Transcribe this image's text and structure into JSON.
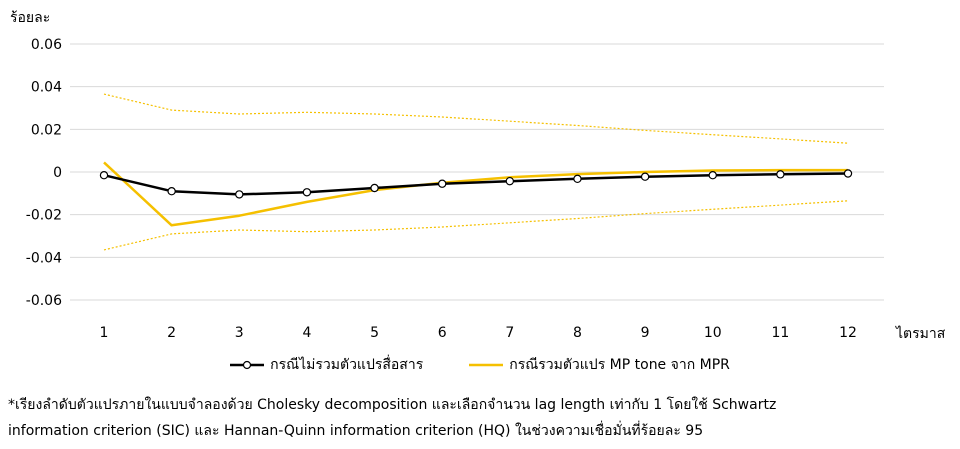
{
  "chart_data": {
    "type": "line",
    "ylabel": "ร้อยละ",
    "xlabel": "ไตรมาส",
    "x": [
      1,
      2,
      3,
      4,
      5,
      6,
      7,
      8,
      9,
      10,
      11,
      12
    ],
    "ylim": [
      -0.06,
      0.06
    ],
    "yticks": [
      "0.06",
      "0.04",
      "0.02",
      "0",
      "-0.02",
      "-0.04",
      "-0.06"
    ],
    "grid": true,
    "legend_position": "bottom",
    "series": [
      {
        "name": "กรณีไม่รวมตัวแปรสื่อสาร",
        "color": "#000000",
        "style": "solid-marker",
        "values": [
          -0.0015,
          -0.009,
          -0.0105,
          -0.0095,
          -0.0075,
          -0.0055,
          -0.0043,
          -0.0032,
          -0.0022,
          -0.0015,
          -0.0011,
          -0.0007
        ]
      },
      {
        "name": "กรณีรวมตัวแปร MP tone จาก MPR",
        "color": "#F5C000",
        "style": "solid",
        "values": [
          0.0045,
          -0.025,
          -0.0205,
          -0.014,
          -0.0085,
          -0.005,
          -0.0025,
          -0.001,
          0.0,
          0.0007,
          0.0009,
          0.0009
        ]
      },
      {
        "name": "",
        "color": "#F5C000",
        "style": "dotted",
        "values": [
          0.0365,
          0.029,
          0.0272,
          0.028,
          0.0272,
          0.0258,
          0.0238,
          0.0218,
          0.0195,
          0.0175,
          0.0155,
          0.0135
        ]
      },
      {
        "name": "",
        "color": "#F5C000",
        "style": "dotted",
        "values": [
          -0.0365,
          -0.029,
          -0.0272,
          -0.028,
          -0.0272,
          -0.0258,
          -0.0238,
          -0.0218,
          -0.0195,
          -0.0175,
          -0.0155,
          -0.0135
        ]
      }
    ]
  },
  "legend": {
    "item1": "กรณีไม่รวมตัวแปรสื่อสาร",
    "item2": "กรณีรวมตัวแปร MP tone จาก MPR"
  },
  "note": {
    "line1": "*เรียงลำดับตัวแปรภายในแบบจำลองด้วย Cholesky decomposition และเลือกจำนวน lag length เท่ากับ 1 โดยใช้ Schwartz",
    "line2": "information criterion (SIC) และ Hannan-Quinn information criterion (HQ) ในช่วงความเชื่อมั่นที่ร้อยละ 95"
  }
}
